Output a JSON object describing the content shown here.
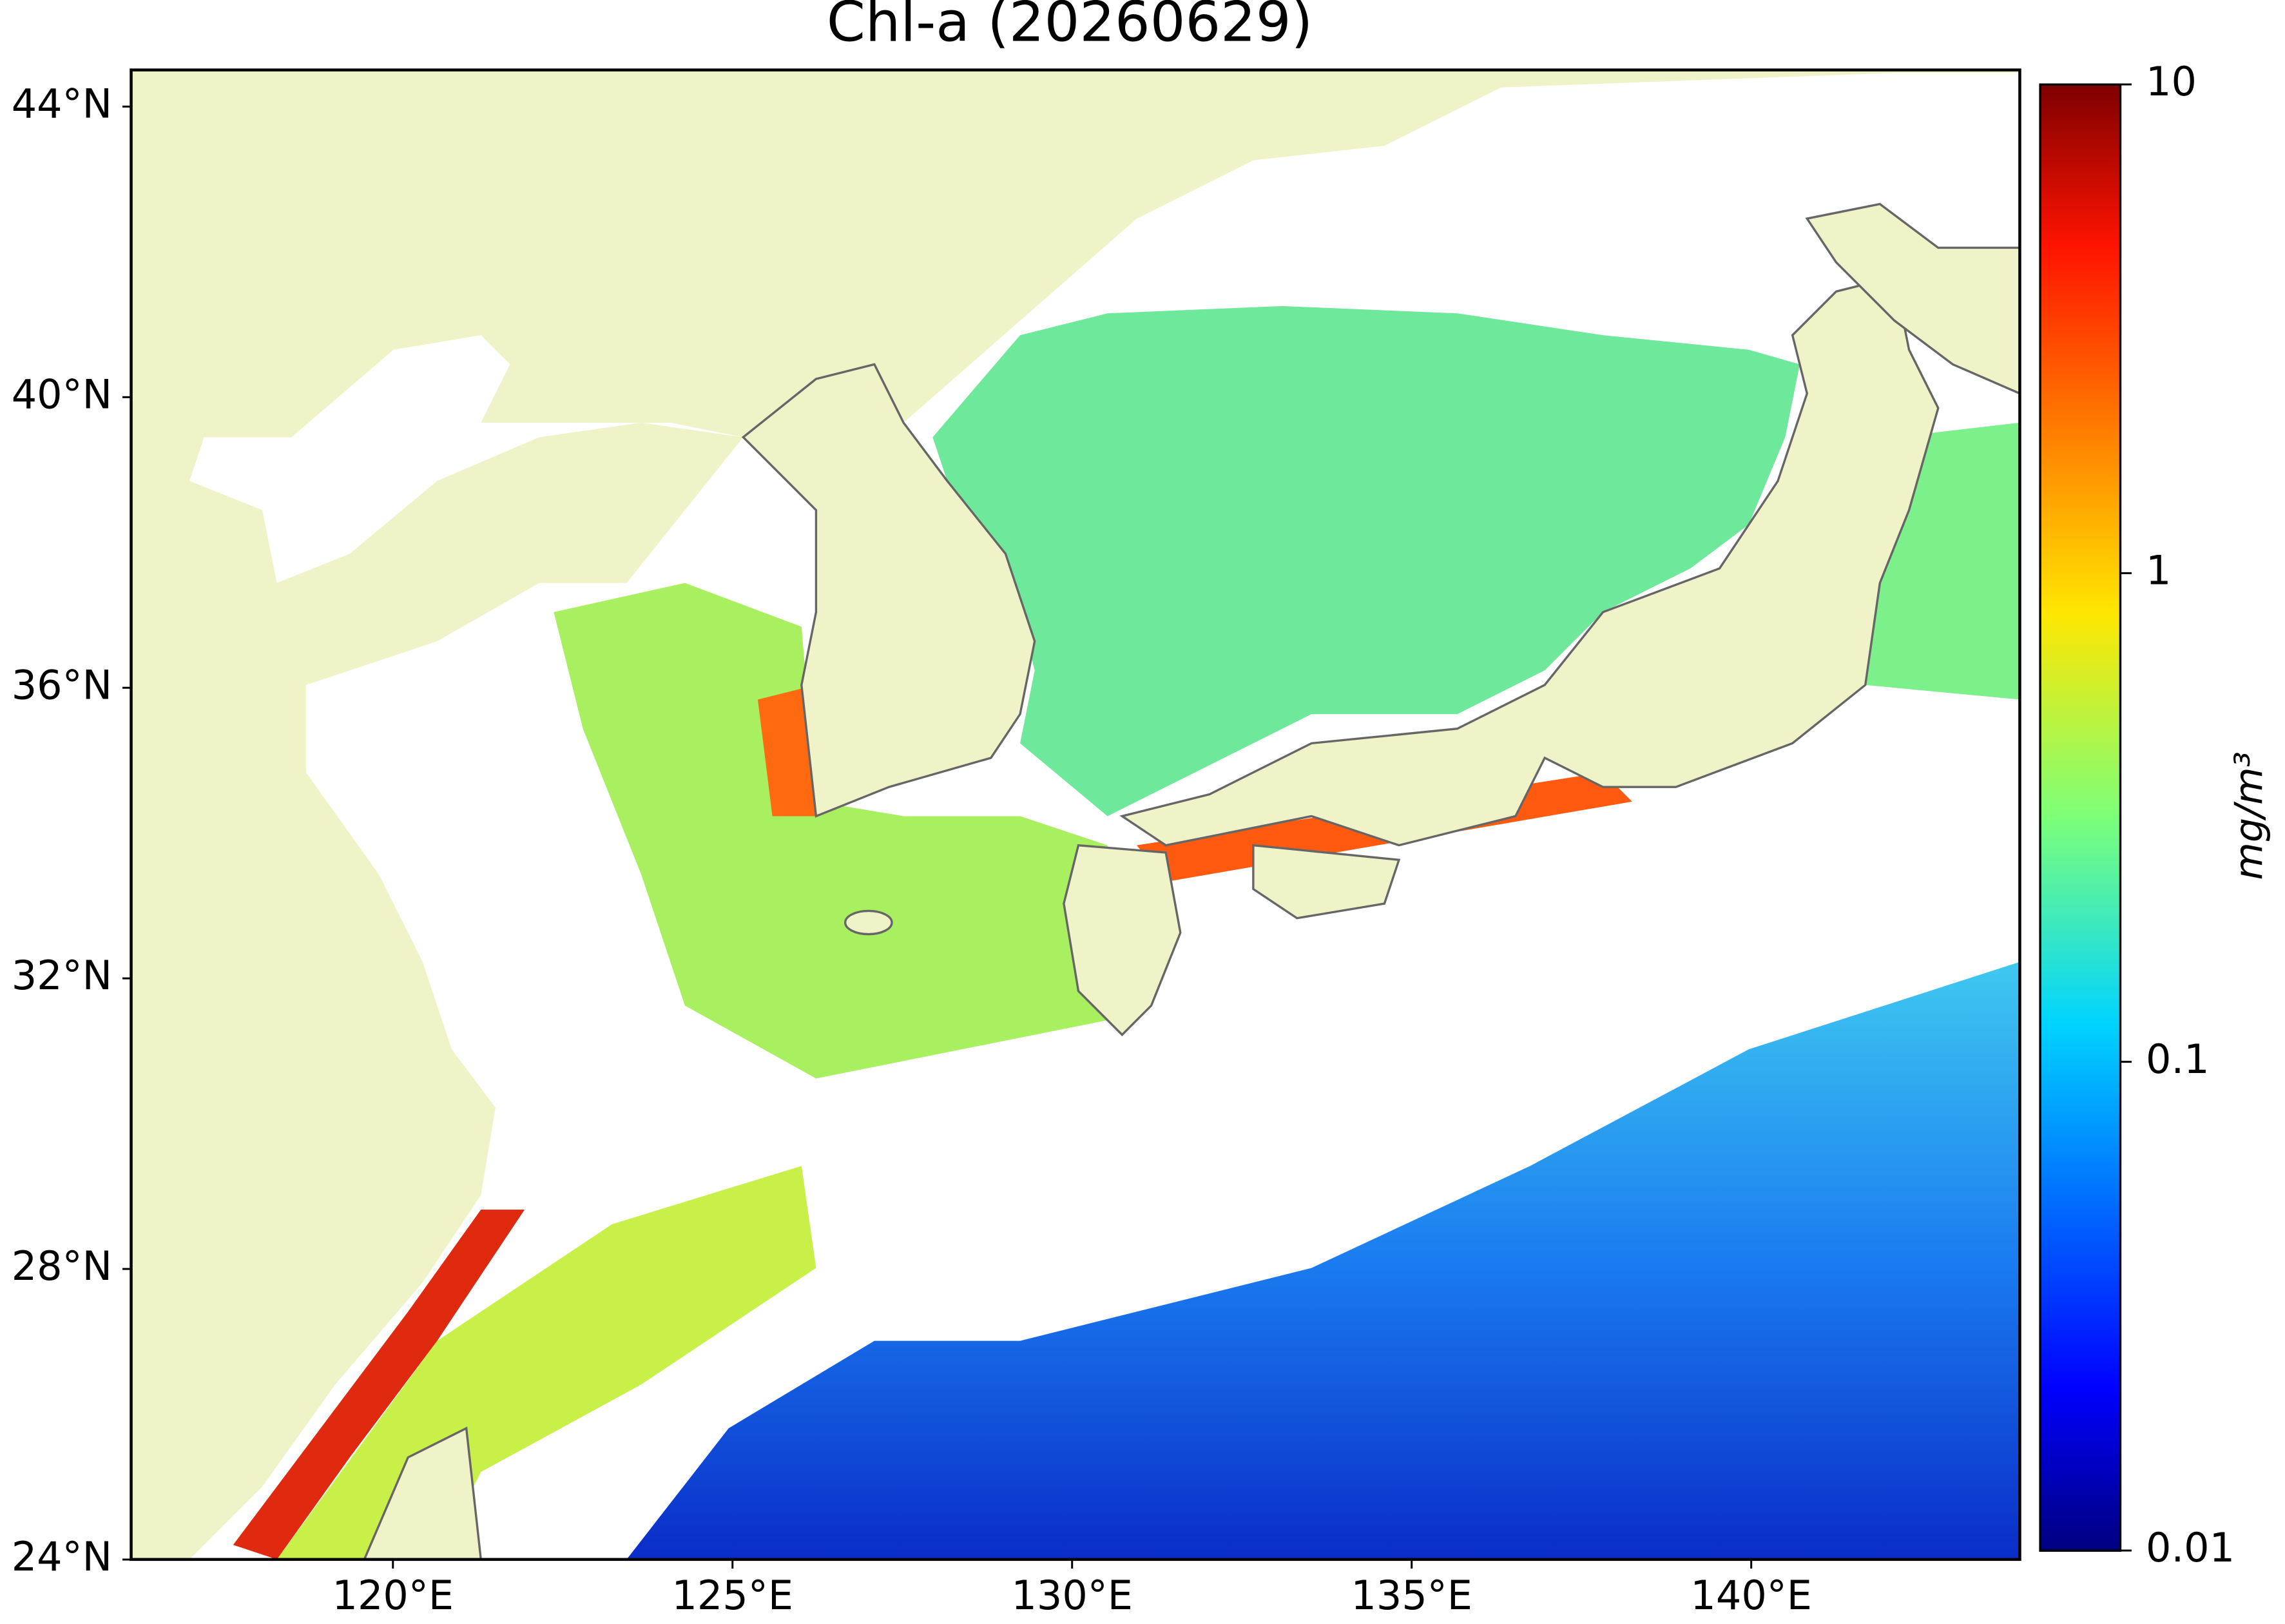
{
  "title": "Chl-a (20260629)",
  "map": {
    "xlim": [
      116.15,
      143.95
    ],
    "ylim": [
      24,
      44.5
    ],
    "xticks": [
      {
        "value": 120,
        "label": "120°E"
      },
      {
        "value": 125,
        "label": "125°E"
      },
      {
        "value": 130,
        "label": "130°E"
      },
      {
        "value": 135,
        "label": "135°E"
      },
      {
        "value": 140,
        "label": "140°E"
      }
    ],
    "yticks": [
      {
        "value": 24,
        "label": "24°N"
      },
      {
        "value": 28,
        "label": "28°N"
      },
      {
        "value": 32,
        "label": "32°N"
      },
      {
        "value": 36,
        "label": "36°N"
      },
      {
        "value": 40,
        "label": "40°N"
      },
      {
        "value": 44,
        "label": "44°N"
      }
    ]
  },
  "colorbar": {
    "scale": "log",
    "lim": [
      0.01,
      10
    ],
    "ticks": [
      0.01,
      0.1,
      1,
      10
    ],
    "label": "mg/m³"
  }
}
